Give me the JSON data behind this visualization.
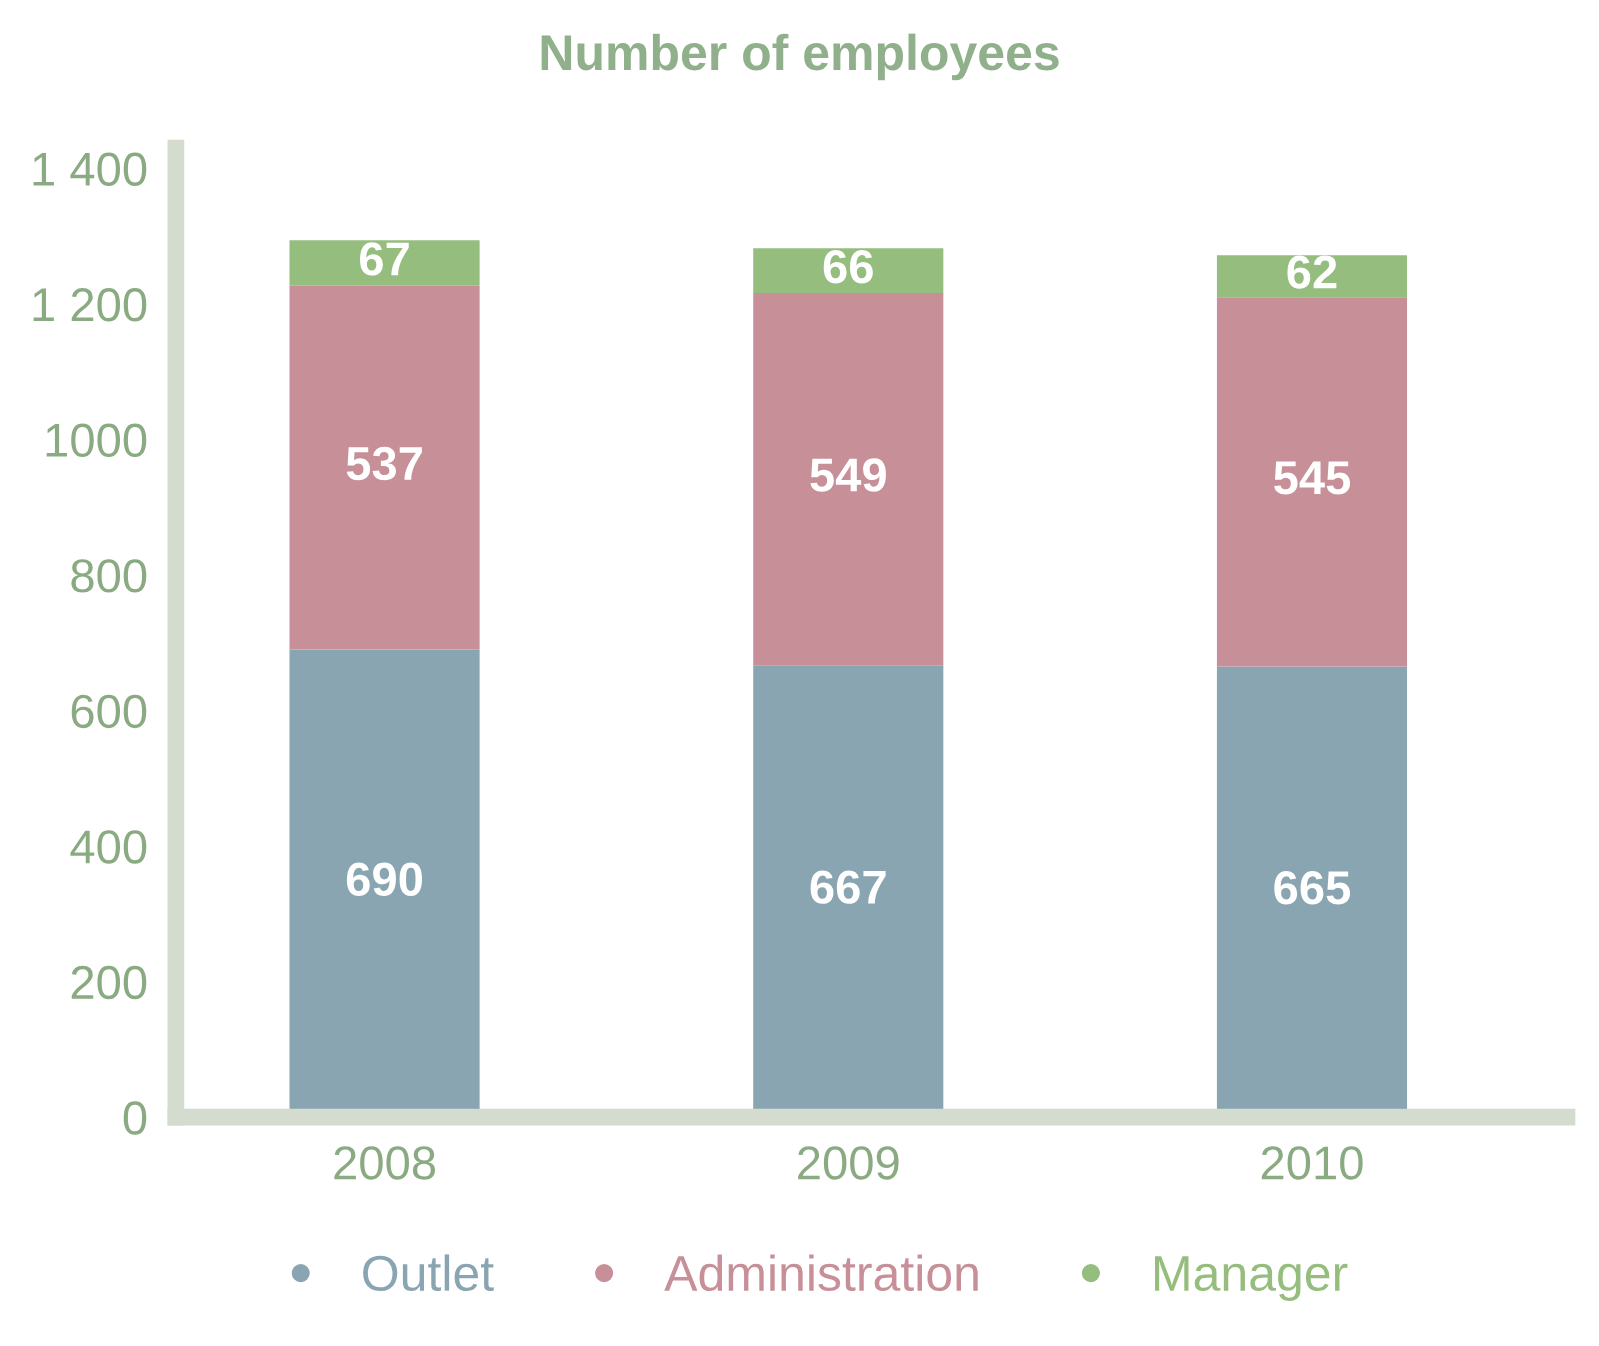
{
  "chart_data": {
    "type": "bar",
    "title": "Number of employees",
    "categories": [
      "2008",
      "2009",
      "2010"
    ],
    "stacked": true,
    "data_labels": true,
    "legend": "bottom",
    "grid": false,
    "marker": "circle",
    "series": [
      {
        "name": "Outlet",
        "color": "#8aa5b2",
        "values": [
          690,
          667,
          665
        ]
      },
      {
        "name": "Administration",
        "color": "#c78f98",
        "values": [
          537,
          549,
          545
        ]
      },
      {
        "name": "Manager",
        "color": "#95bd7d",
        "values": [
          67,
          66,
          62
        ]
      }
    ],
    "ylim": [
      0,
      1430
    ],
    "yticks": [
      0,
      200,
      400,
      600,
      800,
      1000,
      {
        "value": 1200,
        "label": "1 200"
      },
      {
        "value": 1400,
        "label": "1 400"
      }
    ]
  }
}
